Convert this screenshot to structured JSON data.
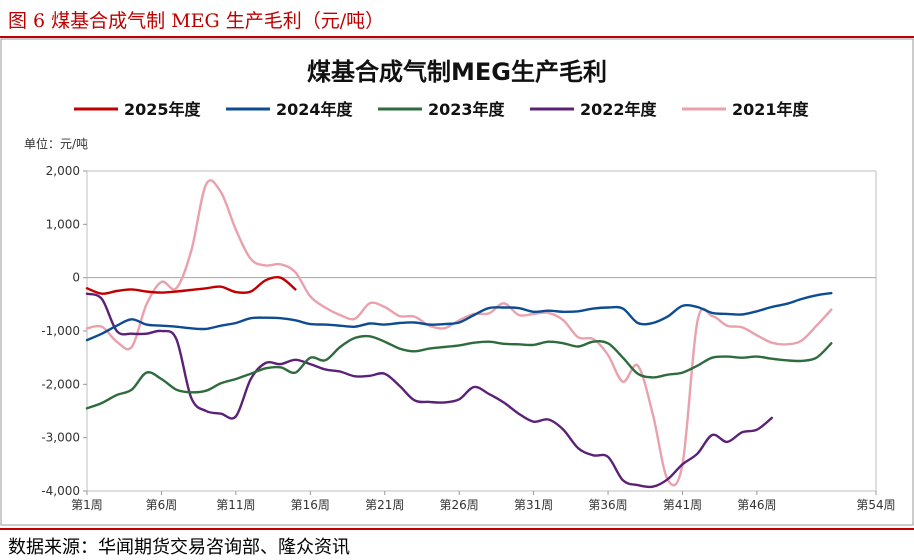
{
  "figure": {
    "caption": "图 6 煤基合成气制 MEG 生产毛利（元/吨）",
    "source": "数据来源：华闻期货交易咨询部、隆众资讯"
  },
  "chart_data": {
    "type": "line",
    "title": "煤基合成气制MEG生产毛利",
    "unit_label": "单位：元/吨",
    "xlabel": "",
    "ylabel": "",
    "x_range": [
      1,
      54
    ],
    "x_ticks": [
      {
        "x": 1,
        "label": "第1周"
      },
      {
        "x": 6,
        "label": "第6周"
      },
      {
        "x": 11,
        "label": "第11周"
      },
      {
        "x": 16,
        "label": "第16周"
      },
      {
        "x": 21,
        "label": "第21周"
      },
      {
        "x": 26,
        "label": "第26周"
      },
      {
        "x": 31,
        "label": "第31周"
      },
      {
        "x": 36,
        "label": "第36周"
      },
      {
        "x": 41,
        "label": "第41周"
      },
      {
        "x": 46,
        "label": "第46周"
      },
      {
        "x": 54,
        "label": "第54周"
      }
    ],
    "ylim": [
      -4000,
      2000
    ],
    "y_ticks": [
      {
        "value": 2000,
        "label": "2,000"
      },
      {
        "value": 1000,
        "label": "1,000"
      },
      {
        "value": 0,
        "label": "0"
      },
      {
        "value": -1000,
        "label": "-1,000"
      },
      {
        "value": -2000,
        "label": "-2,000"
      },
      {
        "value": -3000,
        "label": "-3,000"
      },
      {
        "value": -4000,
        "label": "-4,000"
      }
    ],
    "grid": false,
    "legend_position": "top",
    "series": [
      {
        "name": "2025年度",
        "color": "#c00000",
        "points": [
          [
            1,
            -200
          ],
          [
            2,
            -300
          ],
          [
            3,
            -250
          ],
          [
            4,
            -220
          ],
          [
            5,
            -260
          ],
          [
            6,
            -280
          ],
          [
            7,
            -260
          ],
          [
            8,
            -230
          ],
          [
            9,
            -200
          ],
          [
            10,
            -170
          ],
          [
            11,
            -270
          ],
          [
            12,
            -260
          ],
          [
            13,
            -50
          ],
          [
            14,
            0
          ],
          [
            15,
            -220
          ]
        ]
      },
      {
        "name": "2024年度",
        "color": "#0d4c92",
        "points": [
          [
            1,
            -1170
          ],
          [
            2,
            -1050
          ],
          [
            3,
            -900
          ],
          [
            4,
            -780
          ],
          [
            5,
            -880
          ],
          [
            6,
            -900
          ],
          [
            7,
            -920
          ],
          [
            8,
            -950
          ],
          [
            9,
            -960
          ],
          [
            10,
            -900
          ],
          [
            11,
            -850
          ],
          [
            12,
            -760
          ],
          [
            13,
            -750
          ],
          [
            14,
            -760
          ],
          [
            15,
            -800
          ],
          [
            16,
            -870
          ],
          [
            17,
            -880
          ],
          [
            18,
            -900
          ],
          [
            19,
            -920
          ],
          [
            20,
            -860
          ],
          [
            21,
            -880
          ],
          [
            22,
            -850
          ],
          [
            23,
            -840
          ],
          [
            24,
            -880
          ],
          [
            25,
            -870
          ],
          [
            26,
            -840
          ],
          [
            27,
            -700
          ],
          [
            28,
            -570
          ],
          [
            29,
            -560
          ],
          [
            30,
            -570
          ],
          [
            31,
            -640
          ],
          [
            32,
            -620
          ],
          [
            33,
            -640
          ],
          [
            34,
            -630
          ],
          [
            35,
            -580
          ],
          [
            36,
            -560
          ],
          [
            37,
            -580
          ],
          [
            38,
            -850
          ],
          [
            39,
            -850
          ],
          [
            40,
            -730
          ],
          [
            41,
            -530
          ],
          [
            42,
            -550
          ],
          [
            43,
            -660
          ],
          [
            44,
            -680
          ],
          [
            45,
            -690
          ],
          [
            46,
            -630
          ],
          [
            47,
            -550
          ],
          [
            48,
            -490
          ],
          [
            49,
            -400
          ],
          [
            50,
            -330
          ],
          [
            51,
            -290
          ]
        ]
      },
      {
        "name": "2023年度",
        "color": "#2e6b3d",
        "points": [
          [
            1,
            -2450
          ],
          [
            2,
            -2350
          ],
          [
            3,
            -2200
          ],
          [
            4,
            -2100
          ],
          [
            5,
            -1780
          ],
          [
            6,
            -1900
          ],
          [
            7,
            -2100
          ],
          [
            8,
            -2150
          ],
          [
            9,
            -2120
          ],
          [
            10,
            -1980
          ],
          [
            11,
            -1900
          ],
          [
            12,
            -1800
          ],
          [
            13,
            -1700
          ],
          [
            14,
            -1680
          ],
          [
            15,
            -1780
          ],
          [
            16,
            -1500
          ],
          [
            17,
            -1550
          ],
          [
            18,
            -1300
          ],
          [
            19,
            -1130
          ],
          [
            20,
            -1100
          ],
          [
            21,
            -1200
          ],
          [
            22,
            -1330
          ],
          [
            23,
            -1380
          ],
          [
            24,
            -1330
          ],
          [
            25,
            -1300
          ],
          [
            26,
            -1270
          ],
          [
            27,
            -1220
          ],
          [
            28,
            -1200
          ],
          [
            29,
            -1240
          ],
          [
            30,
            -1250
          ],
          [
            31,
            -1260
          ],
          [
            32,
            -1200
          ],
          [
            33,
            -1230
          ],
          [
            34,
            -1290
          ],
          [
            35,
            -1200
          ],
          [
            36,
            -1230
          ],
          [
            37,
            -1500
          ],
          [
            38,
            -1800
          ],
          [
            39,
            -1870
          ],
          [
            40,
            -1820
          ],
          [
            41,
            -1780
          ],
          [
            42,
            -1650
          ],
          [
            43,
            -1500
          ],
          [
            44,
            -1480
          ],
          [
            45,
            -1500
          ],
          [
            46,
            -1480
          ],
          [
            47,
            -1520
          ],
          [
            48,
            -1550
          ],
          [
            49,
            -1560
          ],
          [
            50,
            -1500
          ],
          [
            51,
            -1230
          ]
        ]
      },
      {
        "name": "2022年度",
        "color": "#5b2177",
        "points": [
          [
            1,
            -300
          ],
          [
            2,
            -400
          ],
          [
            3,
            -1000
          ],
          [
            4,
            -1050
          ],
          [
            5,
            -1050
          ],
          [
            6,
            -1000
          ],
          [
            7,
            -1150
          ],
          [
            8,
            -2250
          ],
          [
            9,
            -2500
          ],
          [
            10,
            -2550
          ],
          [
            11,
            -2600
          ],
          [
            12,
            -1900
          ],
          [
            13,
            -1600
          ],
          [
            14,
            -1620
          ],
          [
            15,
            -1540
          ],
          [
            16,
            -1620
          ],
          [
            17,
            -1720
          ],
          [
            18,
            -1760
          ],
          [
            19,
            -1850
          ],
          [
            20,
            -1840
          ],
          [
            21,
            -1800
          ],
          [
            22,
            -2030
          ],
          [
            23,
            -2300
          ],
          [
            24,
            -2330
          ],
          [
            25,
            -2340
          ],
          [
            26,
            -2280
          ],
          [
            27,
            -2050
          ],
          [
            28,
            -2180
          ],
          [
            29,
            -2340
          ],
          [
            30,
            -2550
          ],
          [
            31,
            -2700
          ],
          [
            32,
            -2660
          ],
          [
            33,
            -2850
          ],
          [
            34,
            -3200
          ],
          [
            35,
            -3330
          ],
          [
            36,
            -3360
          ],
          [
            37,
            -3800
          ],
          [
            38,
            -3890
          ],
          [
            39,
            -3920
          ],
          [
            40,
            -3780
          ],
          [
            41,
            -3500
          ],
          [
            42,
            -3300
          ],
          [
            43,
            -2950
          ],
          [
            44,
            -3080
          ],
          [
            45,
            -2900
          ],
          [
            46,
            -2850
          ],
          [
            47,
            -2630
          ]
        ]
      },
      {
        "name": "2021年度",
        "color": "#e9a1ad",
        "points": [
          [
            1,
            -950
          ],
          [
            2,
            -920
          ],
          [
            3,
            -1200
          ],
          [
            4,
            -1300
          ],
          [
            5,
            -500
          ],
          [
            6,
            -80
          ],
          [
            7,
            -200
          ],
          [
            8,
            500
          ],
          [
            9,
            1750
          ],
          [
            10,
            1600
          ],
          [
            11,
            900
          ],
          [
            12,
            350
          ],
          [
            13,
            230
          ],
          [
            14,
            250
          ],
          [
            15,
            100
          ],
          [
            16,
            -350
          ],
          [
            17,
            -560
          ],
          [
            18,
            -700
          ],
          [
            19,
            -770
          ],
          [
            20,
            -480
          ],
          [
            21,
            -550
          ],
          [
            22,
            -720
          ],
          [
            23,
            -730
          ],
          [
            24,
            -900
          ],
          [
            25,
            -950
          ],
          [
            26,
            -800
          ],
          [
            27,
            -680
          ],
          [
            28,
            -670
          ],
          [
            29,
            -480
          ],
          [
            30,
            -700
          ],
          [
            31,
            -680
          ],
          [
            32,
            -660
          ],
          [
            33,
            -800
          ],
          [
            34,
            -1120
          ],
          [
            35,
            -1150
          ],
          [
            36,
            -1450
          ],
          [
            37,
            -1950
          ],
          [
            38,
            -1650
          ],
          [
            39,
            -2550
          ],
          [
            40,
            -3780
          ],
          [
            41,
            -3500
          ],
          [
            42,
            -820
          ],
          [
            43,
            -720
          ],
          [
            44,
            -900
          ],
          [
            45,
            -930
          ],
          [
            46,
            -1080
          ],
          [
            47,
            -1220
          ],
          [
            48,
            -1250
          ],
          [
            49,
            -1180
          ],
          [
            50,
            -900
          ],
          [
            51,
            -600
          ]
        ]
      }
    ]
  }
}
